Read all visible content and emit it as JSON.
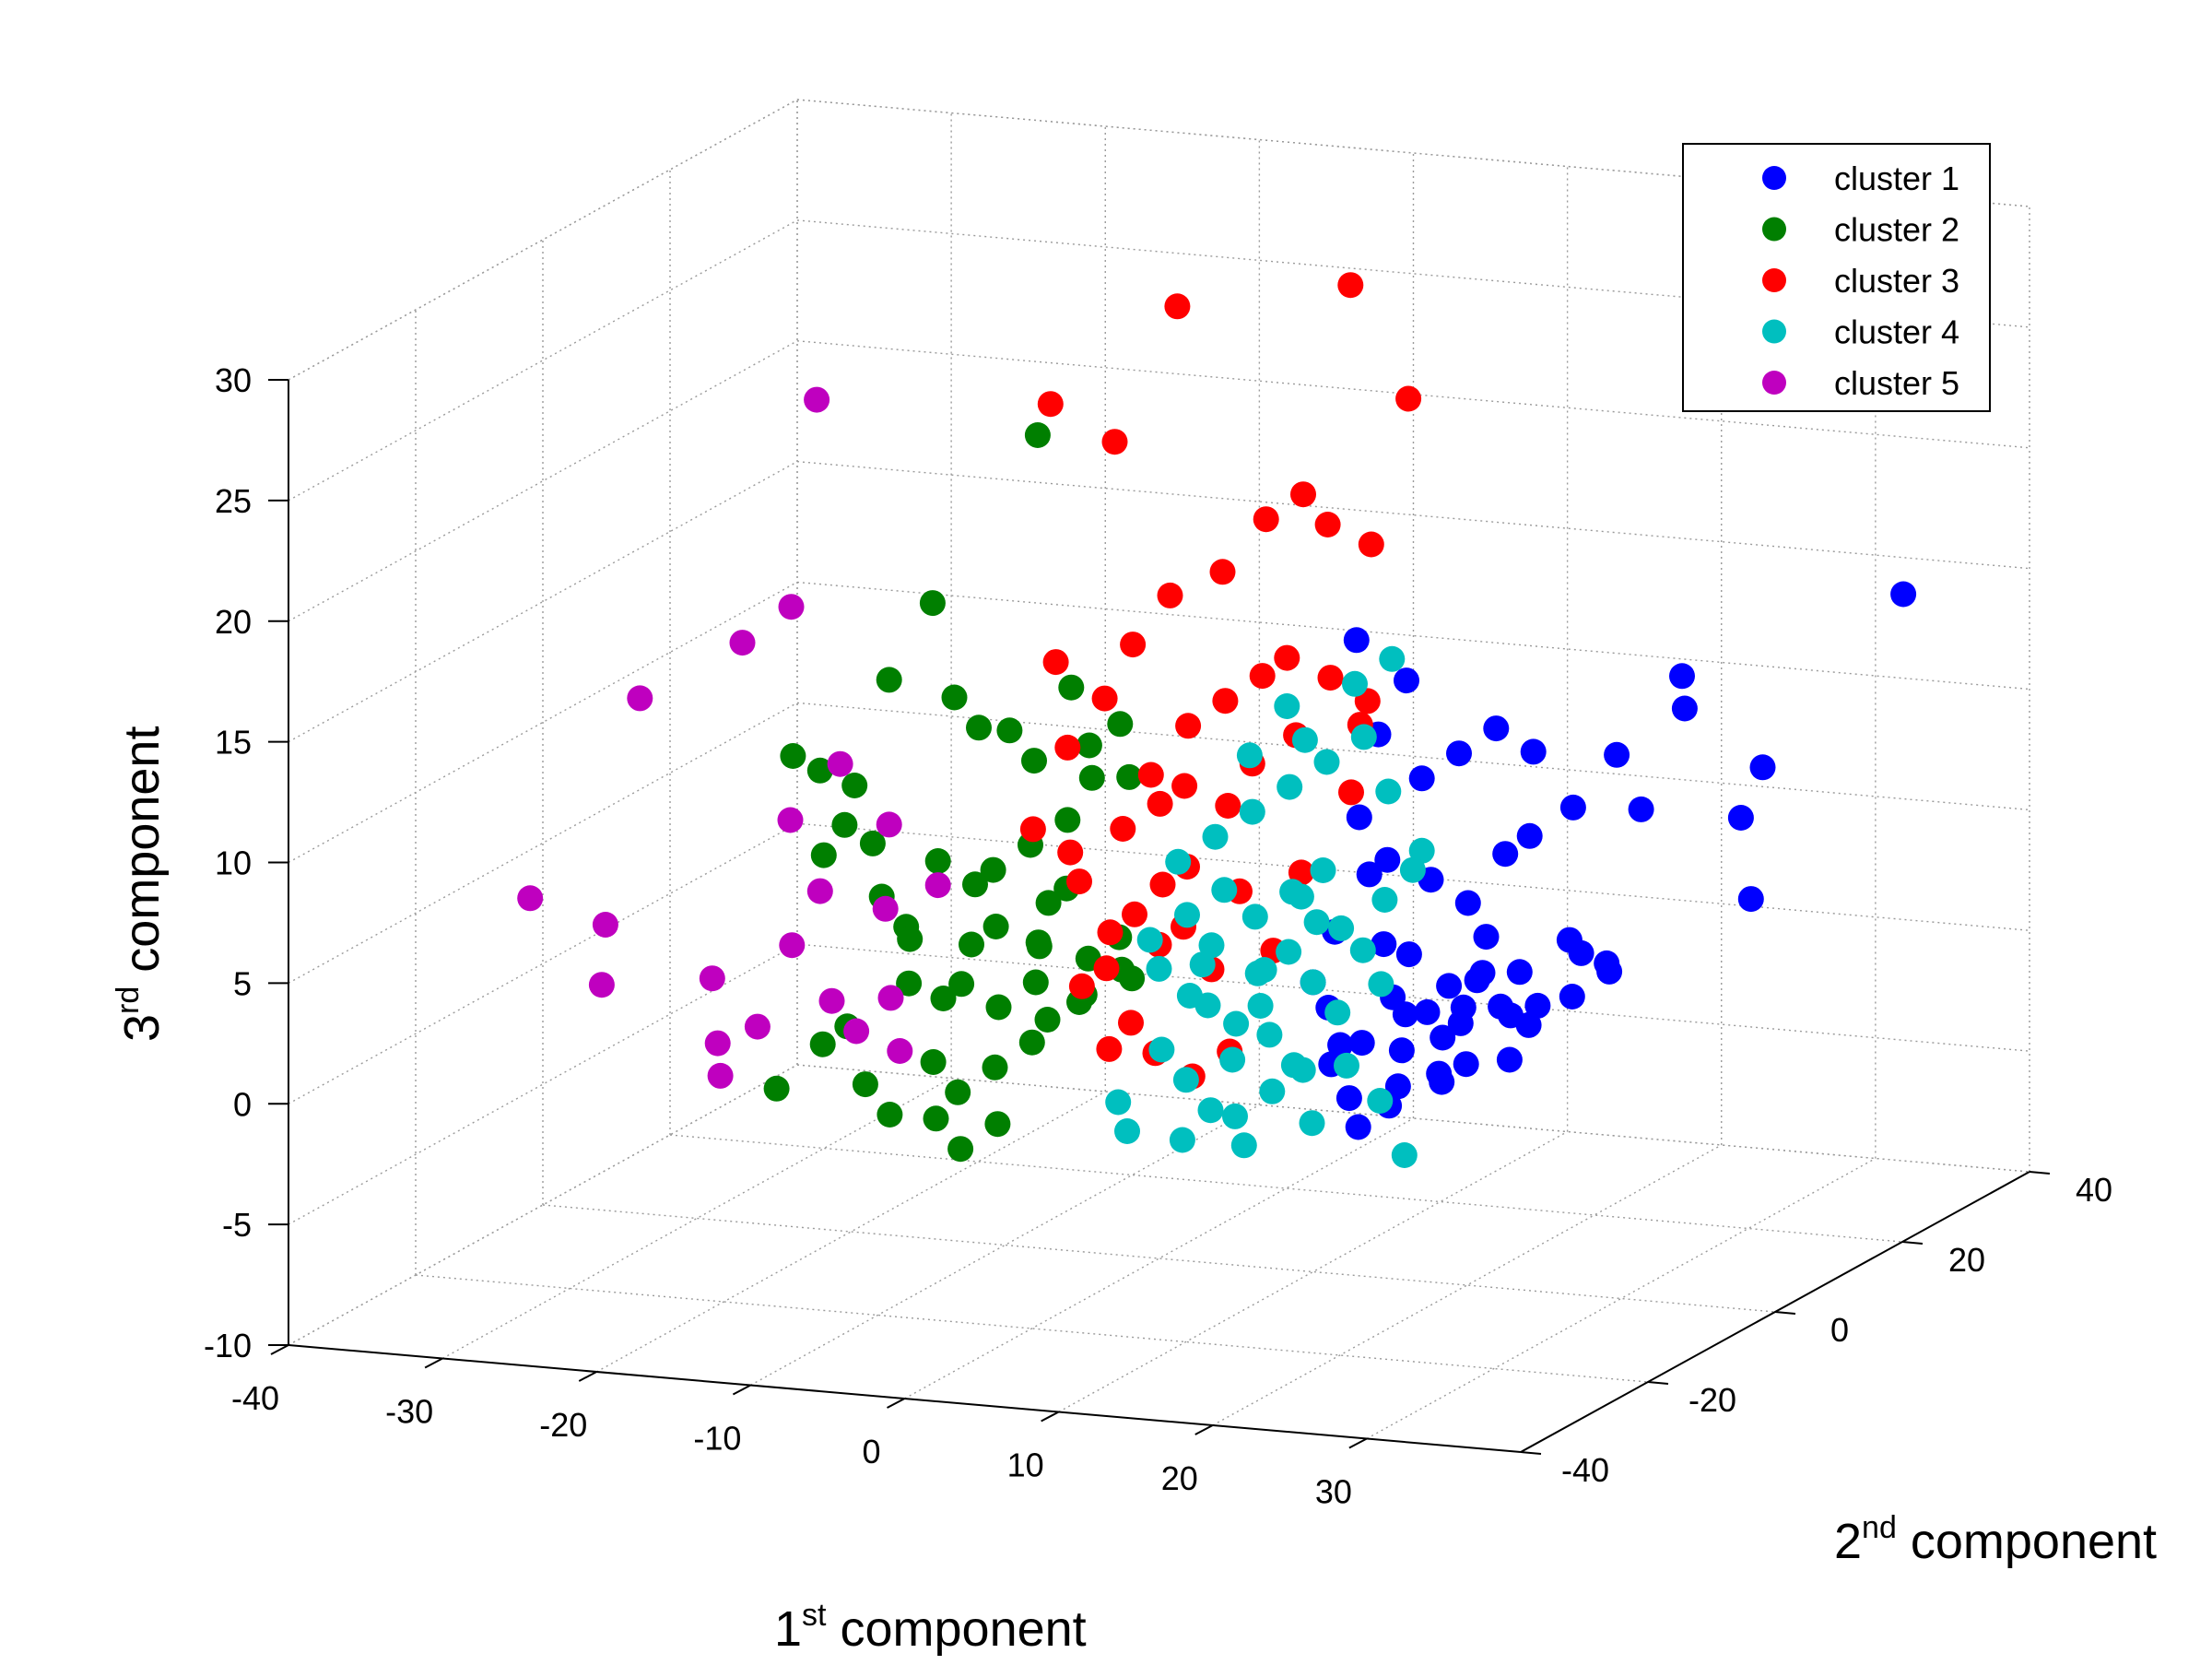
{
  "chart_data": {
    "type": "scatter",
    "title": "",
    "xlabel": "1st component",
    "ylabel": "2nd component",
    "zlabel": "3rd component",
    "axis_titles": {
      "x": {
        "base": "1",
        "sup": "st",
        "rest": " component"
      },
      "y": {
        "base": "2",
        "sup": "nd",
        "rest": " component"
      },
      "z": {
        "base": "3",
        "sup": "rd",
        "rest": " component"
      }
    },
    "xlim": [
      -40,
      40
    ],
    "ylim": [
      -40,
      40
    ],
    "zlim": [
      -10,
      30
    ],
    "xticks": [
      "-40",
      "-30",
      "-20",
      "-10",
      "0",
      "10",
      "20",
      "30"
    ],
    "yticks": [
      "-40",
      "-20",
      "0",
      "20",
      "40"
    ],
    "zticks": [
      "-10",
      "-5",
      "0",
      "5",
      "10",
      "15",
      "20",
      "25",
      "30"
    ],
    "grid": true,
    "legend_position": "top-right",
    "series": [
      {
        "name": "cluster 1",
        "color": "#0000ff",
        "points": [
          [
            14,
            -2,
            0
          ],
          [
            16,
            0,
            1
          ],
          [
            18,
            2,
            2
          ],
          [
            20,
            -1,
            1
          ],
          [
            15,
            3,
            3
          ],
          [
            17,
            -3,
            0
          ],
          [
            19,
            4,
            2
          ],
          [
            21,
            0,
            3
          ],
          [
            16,
            -2,
            2
          ],
          [
            18,
            1,
            0
          ],
          [
            22,
            2,
            1
          ],
          [
            20,
            3,
            4
          ],
          [
            17,
            1,
            1
          ],
          [
            15,
            -1,
            4
          ],
          [
            19,
            -2,
            -1
          ],
          [
            21,
            -3,
            2
          ],
          [
            23,
            1,
            3
          ],
          [
            24,
            0,
            1
          ],
          [
            18,
            5,
            5
          ],
          [
            16,
            4,
            6
          ],
          [
            20,
            6,
            7
          ],
          [
            22,
            5,
            8
          ],
          [
            24,
            7,
            9
          ],
          [
            14,
            2,
            7
          ],
          [
            13,
            0,
            9
          ],
          [
            15,
            5,
            10
          ],
          [
            17,
            6,
            11
          ],
          [
            21,
            8,
            11
          ],
          [
            19,
            7,
            12
          ],
          [
            13,
            3,
            12
          ],
          [
            14,
            5,
            14
          ],
          [
            12,
            2,
            16
          ],
          [
            30,
            10,
            13
          ],
          [
            29,
            12,
            14
          ],
          [
            32,
            14,
            8
          ],
          [
            33,
            15,
            10
          ],
          [
            28,
            8,
            9
          ],
          [
            26,
            9,
            11
          ],
          [
            25,
            4,
            4
          ],
          [
            27,
            5,
            3
          ],
          [
            11,
            0,
            1
          ],
          [
            12,
            -2,
            -1
          ],
          [
            13,
            -3,
            0
          ],
          [
            14,
            -4,
            -2
          ],
          [
            17,
            -5,
            -2
          ],
          [
            20,
            -4,
            -1
          ],
          [
            15,
            -5,
            -3
          ],
          [
            18,
            -6,
            -1
          ],
          [
            23,
            -2,
            2
          ],
          [
            25,
            -1,
            2
          ],
          [
            27,
            1,
            4
          ],
          [
            28,
            3,
            3
          ],
          [
            26,
            2,
            2
          ],
          [
            24,
            -3,
            0
          ],
          [
            22,
            -5,
            0
          ],
          [
            10,
            0,
            2
          ],
          [
            11,
            1,
            4
          ],
          [
            12,
            4,
            6
          ],
          [
            38,
            25,
            16
          ],
          [
            31,
            18,
            4
          ]
        ]
      },
      {
        "name": "cluster 2",
        "color": "#007f00",
        "points": [
          [
            -14,
            0,
            0
          ],
          [
            -13,
            2,
            2
          ],
          [
            -12,
            -2,
            1
          ],
          [
            -11,
            1,
            3
          ],
          [
            -10,
            -1,
            0
          ],
          [
            -9,
            3,
            2
          ],
          [
            -8,
            0,
            1
          ],
          [
            -7,
            -2,
            3
          ],
          [
            -6,
            2,
            0
          ],
          [
            -5,
            1,
            2
          ],
          [
            -15,
            -3,
            1
          ],
          [
            -16,
            -1,
            3
          ],
          [
            -17,
            2,
            2
          ],
          [
            -18,
            0,
            4
          ],
          [
            -13,
            -4,
            -2
          ],
          [
            -11,
            -5,
            -3
          ],
          [
            -9,
            -4,
            -2
          ],
          [
            -7,
            -3,
            -1
          ],
          [
            -12,
            3,
            5
          ],
          [
            -10,
            4,
            6
          ],
          [
            -8,
            5,
            7
          ],
          [
            -14,
            5,
            4
          ],
          [
            -16,
            4,
            5
          ],
          [
            -19,
            1,
            6
          ],
          [
            -20,
            -1,
            7
          ],
          [
            -21,
            3,
            8
          ],
          [
            -22,
            0,
            9
          ],
          [
            -6,
            4,
            9
          ],
          [
            -5,
            6,
            11
          ],
          [
            -7,
            6,
            10
          ],
          [
            -11,
            7,
            9
          ],
          [
            -13,
            8,
            10
          ],
          [
            -17,
            9,
            11
          ],
          [
            -15,
            8,
            10
          ],
          [
            -9,
            8,
            12
          ],
          [
            -4,
            5,
            9
          ],
          [
            -8,
            2,
            4
          ],
          [
            -3,
            1,
            3
          ],
          [
            -2,
            -1,
            2
          ],
          [
            -4,
            -2,
            1
          ],
          [
            -6,
            -3,
            0
          ],
          [
            -19,
            -3,
            -1
          ],
          [
            -21,
            -2,
            -2
          ],
          [
            -17,
            -5,
            -3
          ],
          [
            -15,
            -6,
            -4
          ],
          [
            -12,
            -6,
            -4
          ],
          [
            -10,
            -7,
            -5
          ],
          [
            -8,
            -6,
            -4
          ],
          [
            -24,
            -2,
            -4
          ],
          [
            -23,
            3,
            5
          ],
          [
            -18,
            8,
            15
          ],
          [
            -12,
            10,
            22
          ],
          [
            -25,
            3,
            9
          ],
          [
            -20,
            6,
            12
          ],
          [
            -6,
            0,
            5
          ],
          [
            -3,
            3,
            1
          ]
        ]
      },
      {
        "name": "cluster 3",
        "color": "#ff0000",
        "points": [
          [
            -5,
            0,
            1
          ],
          [
            -4,
            2,
            3
          ],
          [
            -3,
            -1,
            2
          ],
          [
            -2,
            1,
            4
          ],
          [
            -1,
            3,
            5
          ],
          [
            0,
            0,
            3
          ],
          [
            1,
            2,
            6
          ],
          [
            2,
            -1,
            4
          ],
          [
            3,
            1,
            2
          ],
          [
            4,
            3,
            5
          ],
          [
            -6,
            2,
            5
          ],
          [
            -4,
            4,
            7
          ],
          [
            -2,
            5,
            8
          ],
          [
            0,
            4,
            9
          ],
          [
            2,
            6,
            8
          ],
          [
            4,
            5,
            10
          ],
          [
            6,
            7,
            11
          ],
          [
            -3,
            6,
            9
          ],
          [
            -1,
            7,
            11
          ],
          [
            1,
            8,
            12
          ],
          [
            3,
            9,
            13
          ],
          [
            5,
            8,
            14
          ],
          [
            7,
            10,
            13
          ],
          [
            9,
            11,
            12
          ],
          [
            -8,
            5,
            10
          ],
          [
            -6,
            6,
            12
          ],
          [
            -5,
            8,
            14
          ],
          [
            -3,
            9,
            16
          ],
          [
            0,
            10,
            17
          ],
          [
            2,
            12,
            19
          ],
          [
            4,
            13,
            20
          ],
          [
            6,
            12,
            19
          ],
          [
            8,
            14,
            18
          ],
          [
            -7,
            10,
            22
          ],
          [
            -12,
            12,
            23
          ],
          [
            -5,
            15,
            27
          ],
          [
            5,
            18,
            28
          ],
          [
            10,
            15,
            24
          ],
          [
            -10,
            8,
            13
          ],
          [
            -1,
            -2,
            0
          ],
          [
            1,
            -3,
            -1
          ],
          [
            3,
            -2,
            -2
          ],
          [
            5,
            -1,
            -1
          ],
          [
            -2,
            -3,
            -1
          ],
          [
            7,
            1,
            3
          ],
          [
            8,
            3,
            6
          ],
          [
            10,
            6,
            9
          ],
          [
            -7,
            3,
            6
          ],
          [
            -9,
            2,
            7
          ],
          [
            11,
            5,
            12
          ]
        ]
      },
      {
        "name": "cluster 4",
        "color": "#00bfbf",
        "points": [
          [
            5,
            0,
            0
          ],
          [
            6,
            2,
            2
          ],
          [
            7,
            -1,
            1
          ],
          [
            8,
            1,
            3
          ],
          [
            9,
            3,
            4
          ],
          [
            10,
            0,
            2
          ],
          [
            4,
            -2,
            1
          ],
          [
            3,
            1,
            3
          ],
          [
            2,
            2,
            2
          ],
          [
            6,
            -3,
            -1
          ],
          [
            8,
            -2,
            0
          ],
          [
            10,
            -3,
            -1
          ],
          [
            12,
            -1,
            1
          ],
          [
            11,
            2,
            4
          ],
          [
            9,
            4,
            6
          ],
          [
            7,
            4,
            5
          ],
          [
            5,
            3,
            4
          ],
          [
            3,
            3,
            5
          ],
          [
            1,
            2,
            4
          ],
          [
            0,
            0,
            2
          ],
          [
            4,
            5,
            8
          ],
          [
            6,
            6,
            9
          ],
          [
            8,
            7,
            10
          ],
          [
            10,
            8,
            11
          ],
          [
            12,
            7,
            9
          ],
          [
            2,
            4,
            7
          ],
          [
            0,
            3,
            6
          ],
          [
            -1,
            1,
            3
          ],
          [
            1,
            -2,
            -1
          ],
          [
            3,
            -3,
            -2
          ],
          [
            5,
            -4,
            -3
          ],
          [
            7,
            -5,
            -3
          ],
          [
            9,
            -4,
            -2
          ],
          [
            11,
            -4,
            -1
          ],
          [
            13,
            -2,
            -1
          ],
          [
            14,
            1,
            2
          ],
          [
            13,
            4,
            5
          ],
          [
            12,
            3,
            3
          ],
          [
            15,
            5,
            7
          ],
          [
            7,
            6,
            11
          ],
          [
            5,
            8,
            12
          ],
          [
            9,
            9,
            13
          ],
          [
            11,
            10,
            14
          ],
          [
            3,
            7,
            10
          ],
          [
            -1,
            -4,
            -3
          ],
          [
            0,
            -5,
            -4
          ],
          [
            4,
            -6,
            -4
          ],
          [
            8,
            -6,
            -4
          ],
          [
            12,
            -5,
            -3
          ],
          [
            16,
            -4,
            -2
          ],
          [
            14,
            6,
            6
          ],
          [
            6,
            1,
            2
          ],
          [
            8,
            3,
            5
          ],
          [
            2,
            0,
            1
          ],
          [
            18,
            -5,
            -4
          ]
        ]
      },
      {
        "name": "cluster 5",
        "color": "#bf00bf",
        "points": [
          [
            -38,
            5,
            1
          ],
          [
            -37,
            2,
            -1
          ],
          [
            -40,
            -2,
            3
          ],
          [
            -37,
            8,
            10
          ],
          [
            -32,
            12,
            12
          ],
          [
            -28,
            10,
            14
          ],
          [
            -26,
            5,
            6
          ],
          [
            -24,
            8,
            8
          ],
          [
            -20,
            6,
            6
          ],
          [
            -22,
            0,
            4
          ],
          [
            -23,
            -2,
            2
          ],
          [
            -20,
            -3,
            0
          ],
          [
            -27,
            -4,
            -2
          ],
          [
            -24,
            -5,
            -1
          ],
          [
            -17,
            -1,
            0
          ],
          [
            -16,
            -2,
            -2
          ],
          [
            -18,
            -4,
            -1
          ],
          [
            -28,
            14,
            22
          ],
          [
            -29,
            0,
            0
          ],
          [
            -19,
            3,
            3
          ],
          [
            -26,
            -6,
            -3
          ],
          [
            -16,
            4,
            4
          ]
        ]
      }
    ]
  }
}
